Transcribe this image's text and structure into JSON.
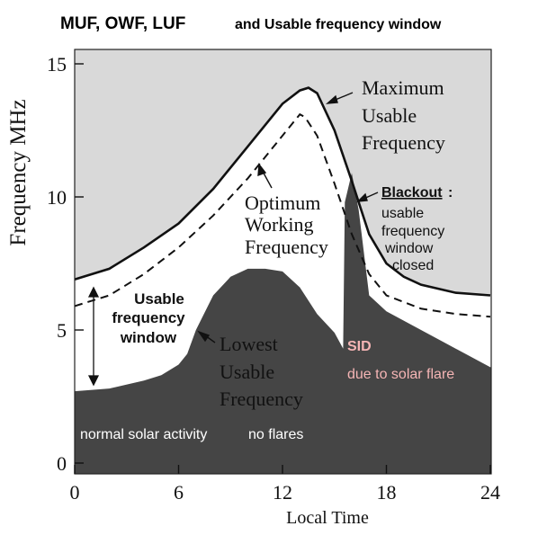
{
  "chart_data": {
    "type": "area",
    "title_main": "MUF, OWF, LUF",
    "title_rest": "and Usable frequency window",
    "xlabel": "Local Time",
    "ylabel": "Frequency  MHz",
    "xlim": [
      0,
      24
    ],
    "ylim": [
      0,
      15
    ],
    "xticks": [
      0,
      6,
      12,
      18,
      24
    ],
    "yticks": [
      0,
      5,
      10,
      15
    ],
    "grid": false,
    "colors": {
      "above_muf": "#d9d9d9",
      "window": "#ffffff",
      "below_luf": "#454545",
      "sid_label": "#f5b5b5"
    },
    "series": [
      {
        "name": "Maximum Usable Frequency",
        "style": "solid",
        "x": [
          0,
          2,
          4,
          6,
          8,
          10,
          12,
          13,
          13.5,
          14,
          15,
          16,
          16.5,
          17,
          18,
          19,
          20,
          22,
          24
        ],
        "y": [
          6.9,
          7.3,
          8.1,
          9.0,
          10.3,
          11.9,
          13.5,
          14.0,
          14.1,
          13.9,
          12.5,
          10.6,
          9.6,
          8.6,
          7.5,
          7.0,
          6.7,
          6.4,
          6.3
        ]
      },
      {
        "name": "Optimum Working Frequency",
        "style": "dashed",
        "x": [
          0,
          2,
          4,
          6,
          8,
          10,
          12,
          13,
          13.3,
          14,
          15,
          16,
          17,
          18,
          20,
          22,
          24
        ],
        "y": [
          5.9,
          6.3,
          7.1,
          8.1,
          9.3,
          10.7,
          12.3,
          13.1,
          13.0,
          12.3,
          10.5,
          8.6,
          7.1,
          6.3,
          5.8,
          5.6,
          5.5
        ]
      },
      {
        "name": "Lowest Usable Frequency",
        "style": "filled",
        "x": [
          0,
          2,
          4,
          5,
          6,
          6.5,
          7,
          8,
          9,
          10,
          11,
          12,
          13,
          14,
          15,
          15.5,
          15.6,
          16,
          16.4,
          17,
          18,
          20,
          22,
          24
        ],
        "y": [
          2.7,
          2.8,
          3.1,
          3.3,
          3.7,
          4.1,
          5.0,
          6.3,
          7.0,
          7.3,
          7.3,
          7.2,
          6.6,
          5.6,
          4.9,
          4.3,
          9.8,
          10.9,
          9.5,
          6.3,
          5.7,
          5.0,
          4.3,
          3.6
        ]
      }
    ],
    "annotations": {
      "muf": [
        "Maximum",
        "Usable",
        "Frequency"
      ],
      "owf": [
        "Optimum",
        "Working",
        "Frequency"
      ],
      "luf": [
        "Lowest",
        "Usable",
        "Frequency"
      ],
      "window": [
        "Usable",
        "frequency",
        "window"
      ],
      "blackout_title": "Blackout",
      "blackout_colon": ":",
      "blackout": [
        "usable",
        "frequency",
        "window",
        "closed"
      ],
      "sid": "SID",
      "sid_note": "due to solar flare",
      "normal": "normal solar activity",
      "noflares": "no flares"
    }
  }
}
